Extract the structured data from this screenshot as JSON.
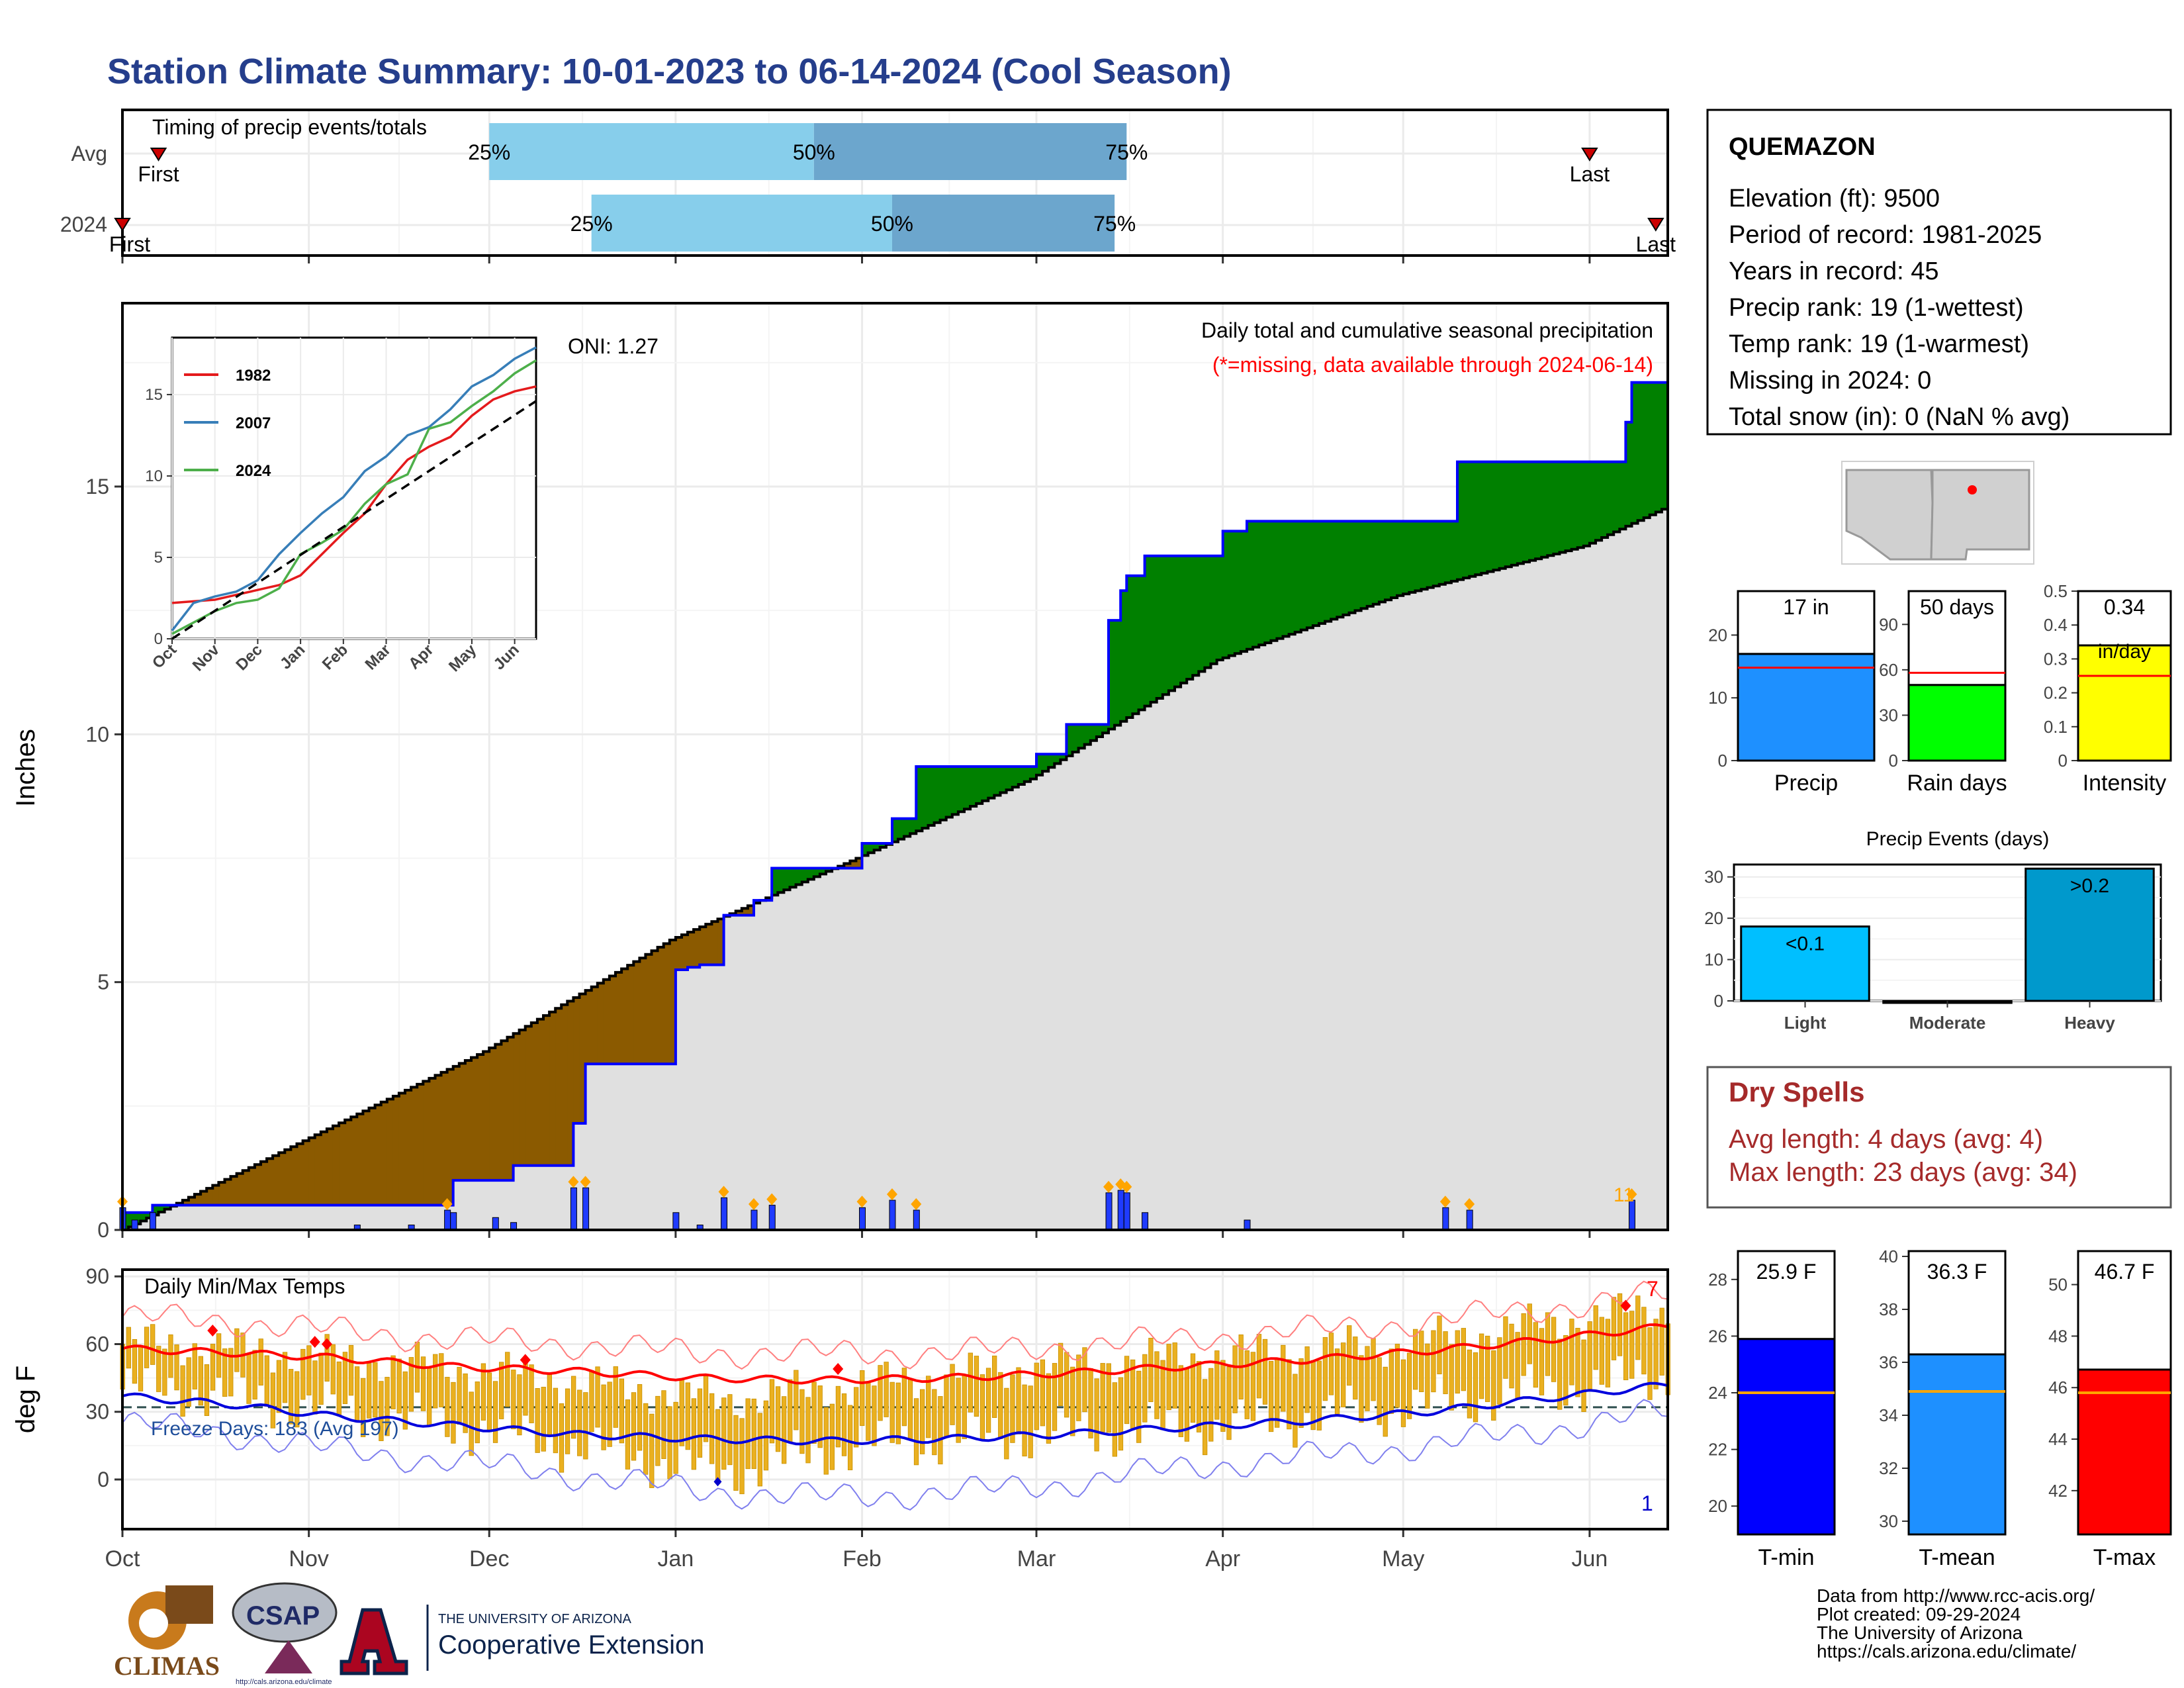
{
  "title": "Station Climate Summary: 10-01-2023 to 06-14-2024 (Cool Season)",
  "months": [
    "Oct",
    "Nov",
    "Dec",
    "Jan",
    "Feb",
    "Mar",
    "Apr",
    "May",
    "Jun"
  ],
  "timing": {
    "label": "Timing of precip events/totals",
    "rows": [
      {
        "row": "Avg",
        "first": "First",
        "last": "Last",
        "p25": "25%",
        "p50": "50%",
        "p75": "75%",
        "first_date": "2023-10-07",
        "last_date": "2024-06-01",
        "q25_date": "2023-12-01",
        "q50_date": "2024-01-24",
        "q75_date": "2024-03-16"
      },
      {
        "row": "2024",
        "first": "First",
        "last": "Last",
        "p25": "25%",
        "p50": "50%",
        "p75": "75%",
        "first_date": "2023-10-01",
        "last_date": "2024-06-12",
        "q25_date": "2023-12-18",
        "q50_date": "2024-02-06",
        "q75_date": "2024-03-14"
      }
    ]
  },
  "precip_panel": {
    "ylabel": "Inches",
    "oni": "ONI: 1.27",
    "note1": "Daily total and cumulative seasonal precipitation",
    "note2": "(*=missing, data available through 2024-06-14)",
    "bar_count": "11",
    "colors": {
      "wet": "#008000",
      "dry": "#8b5a00",
      "avg_fill": "#e0e0e0",
      "line": "#0000ff",
      "bars": "#1f3bff",
      "marker": "#ffa500"
    }
  },
  "inset": {
    "series_names": [
      "1982",
      "2007",
      "2024"
    ],
    "series_colors": [
      "#e41a1c",
      "#377eb8",
      "#4daf4a"
    ]
  },
  "temp_panel": {
    "ylabel": "deg F",
    "title": "Daily Min/Max Temps",
    "freeze": "Freeze Days: 183 (Avg 197)",
    "hot_count": "7",
    "cold_count": "1"
  },
  "station": {
    "name": "QUEMAZON",
    "lines": [
      "Elevation (ft): 9500",
      "Period of record: 1981-2025",
      "Years in record: 45",
      "Precip rank: 19 (1-wettest)",
      "Temp rank: 19 (1-warmest)",
      "Missing in 2024: 0",
      "Total snow (in): 0 (NaN % avg)"
    ]
  },
  "summary_bars": [
    {
      "name": "Precip",
      "label": "17 in",
      "value": 17,
      "avg": 14.8,
      "ymax": 27,
      "ticks": [
        0,
        10,
        20
      ],
      "color": "#1e90ff"
    },
    {
      "name": "Rain days",
      "label": "50 days",
      "value": 50,
      "avg": 58,
      "ymax": 112,
      "ticks": [
        0,
        30,
        60,
        90
      ],
      "color": "#00ff00"
    },
    {
      "name": "Intensity",
      "label": "0.34",
      "label2": "in/day",
      "value": 0.34,
      "avg": 0.25,
      "ymax": 0.5,
      "ticks": [
        0.0,
        0.1,
        0.2,
        0.3,
        0.4,
        0.5
      ],
      "color": "#ffff00"
    }
  ],
  "precip_events": {
    "title": "Precip Events (days)",
    "categories": [
      "Light",
      "Moderate",
      "Heavy"
    ],
    "labels": [
      "<0.1",
      "",
      ">0.2"
    ],
    "values": [
      18,
      0,
      32
    ],
    "colors": [
      "#00bfff",
      "#00bfff",
      "#0099cc"
    ]
  },
  "dry_spells": {
    "title": "Dry Spells",
    "avg": "Avg length: 4 days (avg: 4)",
    "max": "Max length: 23 days (avg: 34)"
  },
  "temp_bars": [
    {
      "name": "T-min",
      "label": "25.9 F",
      "value": 25.9,
      "avg": 24.0,
      "ylim": [
        19,
        29
      ],
      "ticks": [
        20,
        22,
        24,
        26,
        28
      ],
      "color": "#0000ff"
    },
    {
      "name": "T-mean",
      "label": "36.3 F",
      "value": 36.3,
      "avg": 34.9,
      "ylim": [
        29.5,
        40.2
      ],
      "ticks": [
        30,
        32,
        34,
        36,
        38,
        40
      ],
      "color": "#1e90ff"
    },
    {
      "name": "T-max",
      "label": "46.7 F",
      "value": 46.7,
      "avg": 45.8,
      "ylim": [
        40.3,
        51.3
      ],
      "ticks": [
        42,
        44,
        46,
        48,
        50
      ],
      "color": "#ff0000"
    }
  ],
  "footer": {
    "lines": [
      "Data from http://www.rcc-acis.org/",
      "Plot created: 09-29-2024",
      "The University of Arizona",
      "https://cals.arizona.edu/climate/"
    ],
    "climas": "CLIMAS",
    "csap": "CSAP",
    "csap_url": "http://cals.arizona.edu/climate",
    "ua_small": "THE UNIVERSITY OF ARIZONA",
    "ua_big": "Cooperative Extension"
  },
  "chart_data": [
    {
      "type": "area",
      "title": "Daily total and cumulative seasonal precipitation",
      "ylabel": "Inches",
      "ylim": [
        0,
        18.7
      ],
      "xlim": [
        "2023-10-01",
        "2024-06-14"
      ],
      "series": [
        {
          "name": "",
          "x": [
            "2023-10-01",
            "2023-10-03",
            "2023-10-06",
            "2023-11-24",
            "2023-11-25",
            "2023-12-02",
            "2023-12-05",
            "2023-12-15",
            "2023-12-17",
            "2024-01-01",
            "2024-01-03",
            "2024-01-05",
            "2024-01-09",
            "2024-01-14",
            "2024-01-17",
            "2024-01-31",
            "2024-02-01",
            "2024-02-06",
            "2024-02-10",
            "2024-03-01",
            "2024-03-06",
            "2024-03-13",
            "2024-03-15",
            "2024-03-16",
            "2024-03-19",
            "2024-04-01",
            "2024-04-05",
            "2024-05-08",
            "2024-05-10",
            "2024-06-07",
            "2024-06-08",
            "2024-06-14"
          ],
          "values": [
            0.35,
            0.35,
            0.5,
            0.5,
            1.0,
            1.0,
            1.3,
            2.15,
            3.35,
            5.25,
            5.3,
            5.35,
            6.35,
            6.65,
            7.3,
            7.3,
            7.8,
            8.3,
            9.35,
            9.6,
            10.2,
            12.3,
            12.9,
            13.2,
            13.6,
            14.1,
            14.3,
            14.3,
            15.5,
            16.3,
            17.1,
            17.1
          ]
        },
        {
          "name": "",
          "x": [
            "2023-10-01",
            "2023-10-31",
            "2023-11-30",
            "2023-12-31",
            "2024-01-31",
            "2024-02-29",
            "2024-03-31",
            "2024-04-30",
            "2024-05-31",
            "2024-06-14"
          ],
          "values": [
            0.0,
            1.8,
            3.6,
            5.85,
            7.5,
            9.1,
            11.5,
            12.8,
            13.8,
            14.6
          ]
        }
      ],
      "daily_precip": [
        {
          "x": "2023-10-01",
          "y": 0.45
        },
        {
          "x": "2023-10-03",
          "y": 0.2
        },
        {
          "x": "2023-10-06",
          "y": 0.35
        },
        {
          "x": "2023-11-09",
          "y": 0.1
        },
        {
          "x": "2023-11-18",
          "y": 0.1
        },
        {
          "x": "2023-11-24",
          "y": 0.4
        },
        {
          "x": "2023-11-25",
          "y": 0.35
        },
        {
          "x": "2023-12-02",
          "y": 0.25
        },
        {
          "x": "2023-12-05",
          "y": 0.15
        },
        {
          "x": "2023-12-15",
          "y": 0.85
        },
        {
          "x": "2023-12-17",
          "y": 0.85
        },
        {
          "x": "2024-01-01",
          "y": 0.35
        },
        {
          "x": "2024-01-05",
          "y": 0.1
        },
        {
          "x": "2024-01-09",
          "y": 0.65
        },
        {
          "x": "2024-01-14",
          "y": 0.4
        },
        {
          "x": "2024-01-17",
          "y": 0.5
        },
        {
          "x": "2024-02-01",
          "y": 0.45
        },
        {
          "x": "2024-02-06",
          "y": 0.6
        },
        {
          "x": "2024-02-10",
          "y": 0.4
        },
        {
          "x": "2024-03-13",
          "y": 0.75
        },
        {
          "x": "2024-03-15",
          "y": 0.8
        },
        {
          "x": "2024-03-16",
          "y": 0.75
        },
        {
          "x": "2024-03-19",
          "y": 0.35
        },
        {
          "x": "2024-04-05",
          "y": 0.2
        },
        {
          "x": "2024-05-08",
          "y": 0.45
        },
        {
          "x": "2024-05-12",
          "y": 0.4
        },
        {
          "x": "2024-06-08",
          "y": 0.6
        }
      ]
    },
    {
      "type": "line",
      "title": "",
      "xlim": [
        0,
        8.5
      ],
      "ylim": [
        0,
        18.5
      ],
      "categories": [
        "Oct",
        "Nov",
        "Dec",
        "Jan",
        "Feb",
        "Mar",
        "Apr",
        "May",
        "Jun"
      ],
      "yticks": [
        0,
        5,
        10,
        15
      ],
      "series": [
        {
          "name": "1982",
          "x": [
            0,
            0.5,
            1,
            1.5,
            2,
            2.5,
            3,
            3.5,
            4,
            4.5,
            5,
            5.5,
            6,
            6.5,
            7,
            7.5,
            8,
            8.5
          ],
          "values": [
            2.2,
            2.3,
            2.4,
            2.7,
            3.0,
            3.3,
            3.9,
            5.2,
            6.5,
            7.7,
            9.5,
            11.0,
            11.8,
            12.4,
            13.7,
            14.7,
            15.2,
            15.5
          ]
        },
        {
          "name": "2007",
          "x": [
            0,
            0.5,
            1,
            1.5,
            2,
            2.5,
            3,
            3.5,
            4,
            4.5,
            5,
            5.5,
            6,
            6.5,
            7,
            7.5,
            8,
            8.5
          ],
          "values": [
            0.5,
            2.2,
            2.6,
            2.9,
            3.6,
            5.2,
            6.5,
            7.7,
            8.7,
            10.3,
            11.2,
            12.5,
            13.0,
            14.1,
            15.5,
            16.2,
            17.2,
            17.9
          ]
        },
        {
          "name": "2024",
          "x": [
            0,
            0.5,
            1,
            1.5,
            2,
            2.5,
            3,
            3.5,
            4,
            4.5,
            5,
            5.5,
            6,
            6.5,
            7,
            7.5,
            8,
            8.5
          ],
          "values": [
            0.3,
            1.0,
            1.7,
            2.2,
            2.4,
            3.1,
            5.2,
            5.9,
            6.7,
            8.3,
            9.5,
            10.1,
            12.9,
            13.3,
            14.3,
            15.2,
            16.3,
            17.1
          ]
        },
        {
          "name": "",
          "x": [
            0,
            8.5
          ],
          "values": [
            0,
            14.6
          ]
        }
      ]
    },
    {
      "type": "line",
      "title": "Daily Min/Max Temps",
      "ylabel": "deg F",
      "ylim": [
        -22,
        93
      ],
      "xlim": [
        "2023-10-01",
        "2024-06-14"
      ],
      "series": [
        {
          "name": "",
          "x": [
            "2023-10-01",
            "2023-10-20",
            "2023-11-05",
            "2023-11-25",
            "2023-12-15",
            "2024-01-05",
            "2024-01-25",
            "2024-02-15",
            "2024-03-05",
            "2024-03-25",
            "2024-04-15",
            "2024-05-05",
            "2024-05-25",
            "2024-06-14"
          ],
          "values": [
            58,
            56,
            54,
            50,
            48,
            45,
            44,
            45,
            47,
            50,
            53,
            57,
            62,
            68
          ]
        },
        {
          "name": "",
          "x": [
            "2023-10-01",
            "2023-10-20",
            "2023-11-05",
            "2023-11-25",
            "2023-12-15",
            "2024-01-05",
            "2024-01-25",
            "2024-02-15",
            "2024-03-05",
            "2024-03-25",
            "2024-04-15",
            "2024-05-05",
            "2024-05-25",
            "2024-06-14"
          ],
          "values": [
            37,
            33,
            28,
            24,
            20,
            18,
            17,
            18,
            20,
            23,
            26,
            30,
            36,
            42
          ]
        },
        {
          "name": "",
          "x": [
            "2023-10-01",
            "2023-10-20",
            "2023-11-05",
            "2023-11-25",
            "2023-12-15",
            "2024-01-05",
            "2024-01-25",
            "2024-02-15",
            "2024-03-05",
            "2024-03-25",
            "2024-04-15",
            "2024-05-05",
            "2024-05-25",
            "2024-06-14"
          ],
          "values": [
            72,
            70,
            66,
            62,
            60,
            56,
            56,
            56,
            59,
            62,
            66,
            70,
            76,
            82
          ]
        },
        {
          "name": "",
          "x": [
            "2023-10-01",
            "2023-10-20",
            "2023-11-05",
            "2023-11-25",
            "2023-12-15",
            "2024-01-05",
            "2024-01-25",
            "2024-02-15",
            "2024-03-05",
            "2024-03-25",
            "2024-04-15",
            "2024-05-05",
            "2024-05-25",
            "2024-06-14"
          ],
          "values": [
            25,
            20,
            13,
            8,
            2,
            -5,
            -8,
            -6,
            -2,
            5,
            10,
            15,
            22,
            30
          ]
        }
      ],
      "daily_range_samples": [
        {
          "x": "2023-10-10",
          "low": 40,
          "high": 60
        },
        {
          "x": "2023-11-01",
          "low": 32,
          "high": 55
        },
        {
          "x": "2023-12-01",
          "low": 22,
          "high": 48
        },
        {
          "x": "2024-01-09",
          "low": 3,
          "high": 35
        },
        {
          "x": "2024-02-01",
          "low": 16,
          "high": 42
        },
        {
          "x": "2024-03-01",
          "low": 20,
          "high": 50
        },
        {
          "x": "2024-04-01",
          "low": 24,
          "high": 55
        },
        {
          "x": "2024-05-01",
          "low": 32,
          "high": 60
        },
        {
          "x": "2024-06-10",
          "low": 45,
          "high": 75
        }
      ]
    },
    {
      "type": "bar",
      "categories": [
        "Precip"
      ],
      "values": [
        17
      ],
      "ylim": [
        0,
        27
      ]
    },
    {
      "type": "bar",
      "categories": [
        "Rain days"
      ],
      "values": [
        50
      ],
      "ylim": [
        0,
        112
      ]
    },
    {
      "type": "bar",
      "categories": [
        "Intensity"
      ],
      "values": [
        0.34
      ],
      "ylim": [
        0,
        0.5
      ]
    },
    {
      "type": "bar",
      "title": "Precip Events (days)",
      "categories": [
        "Light",
        "Moderate",
        "Heavy"
      ],
      "values": [
        18,
        0,
        32
      ],
      "ylim": [
        0,
        33
      ]
    },
    {
      "type": "bar",
      "categories": [
        "T-min",
        "T-mean",
        "T-max"
      ],
      "values": [
        25.9,
        36.3,
        46.7
      ]
    }
  ]
}
